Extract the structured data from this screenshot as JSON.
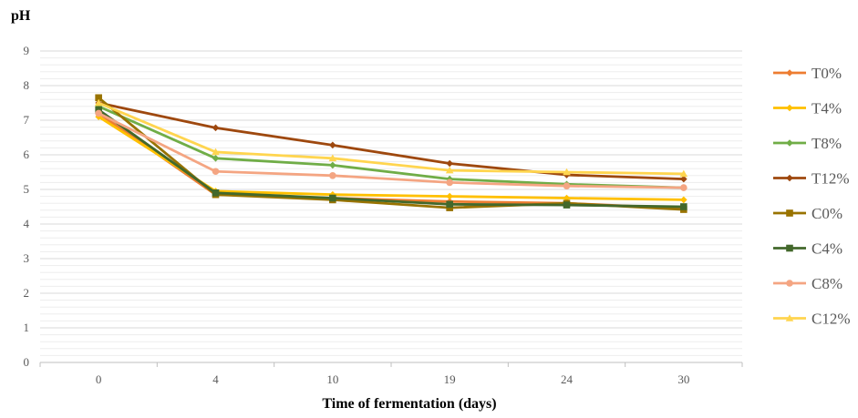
{
  "chart_data": {
    "type": "line",
    "ylabel": "pH",
    "xlabel": "Time of fermentation (days)",
    "categories": [
      "0",
      "4",
      "10",
      "19",
      "24",
      "30"
    ],
    "ylim": [
      0,
      9
    ],
    "yticks": [
      "0",
      "1",
      "2",
      "3",
      "4",
      "5",
      "6",
      "7",
      "8",
      "9"
    ],
    "grid": true,
    "minor_grid": true,
    "legend_position": "right",
    "series": [
      {
        "name": "T0%",
        "color": "#ED7D31",
        "marker": "diamond",
        "values": [
          7.2,
          4.85,
          4.75,
          4.65,
          4.6,
          4.45
        ]
      },
      {
        "name": "T4%",
        "color": "#FFC000",
        "marker": "diamond",
        "values": [
          7.1,
          4.95,
          4.85,
          4.8,
          4.75,
          4.7
        ]
      },
      {
        "name": "T8%",
        "color": "#70AD47",
        "marker": "diamond",
        "values": [
          7.4,
          5.9,
          5.7,
          5.3,
          5.15,
          5.05
        ]
      },
      {
        "name": "T12%",
        "color": "#9E480E",
        "marker": "diamond",
        "values": [
          7.5,
          6.78,
          6.28,
          5.75,
          5.42,
          5.3
        ]
      },
      {
        "name": "C0%",
        "color": "#997300",
        "marker": "square",
        "values": [
          7.65,
          4.85,
          4.7,
          4.47,
          4.6,
          4.42
        ]
      },
      {
        "name": "C4%",
        "color": "#43682B",
        "marker": "square",
        "values": [
          7.3,
          4.9,
          4.75,
          4.57,
          4.55,
          4.5
        ]
      },
      {
        "name": "C8%",
        "color": "#F4A582",
        "marker": "circle",
        "values": [
          7.2,
          5.52,
          5.4,
          5.2,
          5.1,
          5.05
        ]
      },
      {
        "name": "C12%",
        "color": "#FFD54F",
        "marker": "triangle",
        "values": [
          7.5,
          6.08,
          5.9,
          5.55,
          5.5,
          5.45
        ]
      }
    ]
  }
}
